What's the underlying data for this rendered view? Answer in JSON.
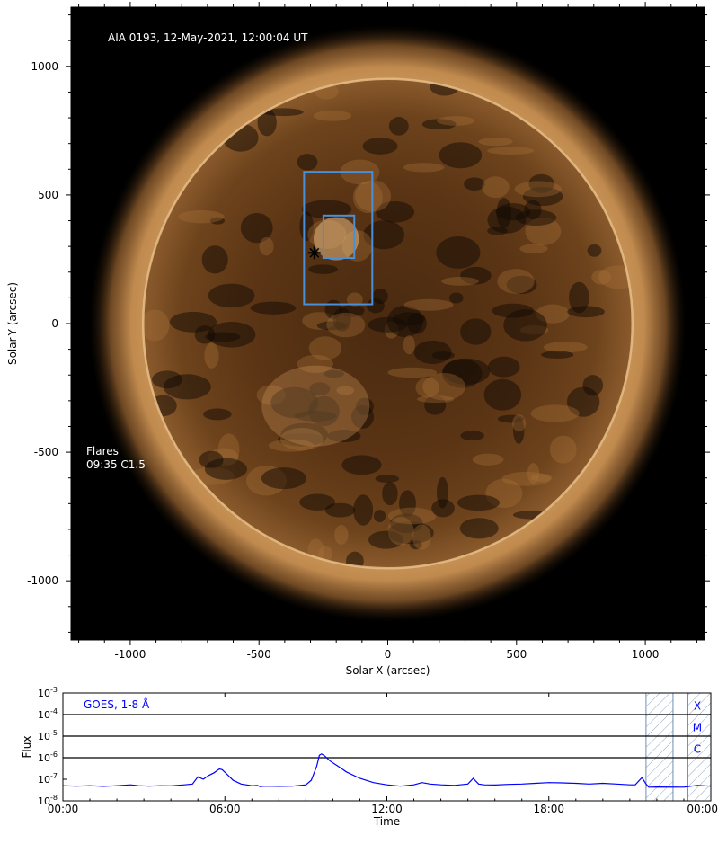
{
  "chart_data": [
    {
      "type": "image",
      "title": "AIA 0193, 12-May-2021, 12:00:04 UT",
      "xlabel": "Solar-X (arcsec)",
      "ylabel": "Solar-Y (arcsec)",
      "xlim": [
        -1230,
        1230
      ],
      "ylim": [
        -1230,
        1230
      ],
      "xticks": [
        -1000,
        -500,
        0,
        500,
        1000
      ],
      "yticks": [
        -1000,
        -500,
        0,
        500,
        1000
      ],
      "xtick_labels": [
        "-1000",
        "-500",
        "0",
        "500",
        "1000"
      ],
      "ytick_labels": [
        "-1000",
        "-500",
        "0",
        "500",
        "1000"
      ],
      "solar_radius": 950,
      "annotation_label": "Flares",
      "flares": [
        {
          "label": "09:35 C1.5",
          "x": -285,
          "y": 275
        }
      ],
      "boxes": [
        {
          "x0": -325,
          "x1": -60,
          "y0": 75,
          "y1": 590,
          "color": "#4a8fd9"
        },
        {
          "x0": -250,
          "x1": -130,
          "y0": 255,
          "y1": 420,
          "color": "#4a8fd9"
        }
      ],
      "colors": {
        "limb": "#c99457",
        "disk": "#5a3413",
        "background": "#000000"
      }
    },
    {
      "type": "line",
      "series": [
        {
          "name": "GOES, 1-8 Å",
          "color": "#0000ff",
          "x": [
            0,
            0.5,
            1,
            1.5,
            2,
            2.5,
            2.8,
            3.2,
            3.6,
            4,
            4.5,
            4.8,
            5,
            5.2,
            5.4,
            5.6,
            5.8,
            5.9,
            6.1,
            6.3,
            6.6,
            7,
            7.2,
            7.3,
            7.5,
            8,
            8.5,
            9,
            9.2,
            9.4,
            9.5,
            9.58,
            9.7,
            9.9,
            10.2,
            10.5,
            11,
            11.5,
            12,
            12.5,
            13,
            13.3,
            13.6,
            14,
            14.5,
            15,
            15.2,
            15.4,
            15.6,
            16,
            16.5,
            17,
            17.5,
            18,
            18.5,
            19,
            19.5,
            20,
            20.5,
            21,
            21.2,
            21.45,
            21.6,
            21.7,
            22,
            23,
            23.5,
            24
          ],
          "y": [
            5e-08,
            4.8e-08,
            5e-08,
            4.7e-08,
            5e-08,
            5.5e-08,
            5e-08,
            4.8e-08,
            5e-08,
            4.9e-08,
            5.5e-08,
            6e-08,
            1.3e-07,
            1e-07,
            1.5e-07,
            2e-07,
            3e-07,
            2.8e-07,
            1.6e-07,
            9e-08,
            6e-08,
            5e-08,
            5.2e-08,
            4.6e-08,
            4.8e-08,
            4.7e-08,
            4.8e-08,
            5.5e-08,
            9e-08,
            4e-07,
            1.3e-06,
            1.5e-06,
            1.2e-06,
            7e-07,
            4e-07,
            2.2e-07,
            1.1e-07,
            7e-08,
            5.5e-08,
            4.8e-08,
            5.5e-08,
            7e-08,
            6e-08,
            5.5e-08,
            5.2e-08,
            6e-08,
            1.1e-07,
            6e-08,
            5.5e-08,
            5.4e-08,
            5.8e-08,
            6e-08,
            6.5e-08,
            7e-08,
            6.8e-08,
            6.5e-08,
            6e-08,
            6.5e-08,
            6e-08,
            5.5e-08,
            5.5e-08,
            1.2e-07,
            6e-08,
            4.3e-08,
            4.4e-08,
            4.3e-08,
            5.2e-08,
            4.8e-08
          ]
        }
      ],
      "xlabel": "Time",
      "ylabel": "Flux",
      "xlim": [
        0,
        24
      ],
      "ylog": true,
      "ylim": [
        1e-08,
        0.001
      ],
      "xticks": [
        0,
        6,
        12,
        18,
        24
      ],
      "xtick_labels": [
        "00:00",
        "06:00",
        "12:00",
        "18:00",
        "00:00"
      ],
      "yticks": [
        1e-08,
        1e-07,
        1e-06,
        1e-05,
        0.0001,
        0.001
      ],
      "ytick_labels": [
        {
          "base": "10",
          "exp": "-8"
        },
        {
          "base": "10",
          "exp": "-7"
        },
        {
          "base": "10",
          "exp": "-6"
        },
        {
          "base": "10",
          "exp": "-5"
        },
        {
          "base": "10",
          "exp": "-4"
        },
        {
          "base": "10",
          "exp": "-3"
        }
      ],
      "reference_lines": [
        1e-06,
        1e-05,
        0.0001
      ],
      "class_labels": [
        {
          "label": "X",
          "y": 0.00025
        },
        {
          "label": "M",
          "y": 2.5e-05
        },
        {
          "label": "C",
          "y": 2.5e-06
        }
      ],
      "hatched_intervals": [
        [
          21.6,
          22.6
        ],
        [
          23.15,
          24
        ]
      ],
      "legend_placement": "top-left",
      "grid": false
    }
  ]
}
